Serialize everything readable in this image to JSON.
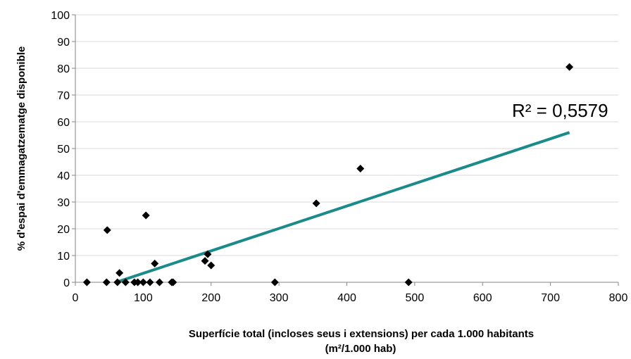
{
  "chart_data": {
    "type": "scatter",
    "xlabel_line1": "Superfície total (incloses seus i extensions) per cada 1.000 habitants",
    "xlabel_line2": "(m²/1.000 hab)",
    "ylabel": "% d'espai d'emmagatzematge disponible",
    "xlim": [
      0,
      800
    ],
    "ylim": [
      0,
      100
    ],
    "x_ticks": [
      0,
      100,
      200,
      300,
      400,
      500,
      600,
      700,
      800
    ],
    "y_ticks": [
      0,
      10,
      20,
      30,
      40,
      50,
      60,
      70,
      80,
      90,
      100
    ],
    "grid": "horizontal",
    "marker": "diamond",
    "marker_color": "#000000",
    "points": [
      {
        "x": 17,
        "y": 0
      },
      {
        "x": 46,
        "y": 0
      },
      {
        "x": 47,
        "y": 19.5
      },
      {
        "x": 62,
        "y": 0
      },
      {
        "x": 65,
        "y": 3.5
      },
      {
        "x": 74,
        "y": 0
      },
      {
        "x": 87,
        "y": 0
      },
      {
        "x": 92,
        "y": 0
      },
      {
        "x": 100,
        "y": 0
      },
      {
        "x": 104,
        "y": 25
      },
      {
        "x": 110,
        "y": 0
      },
      {
        "x": 117,
        "y": 7
      },
      {
        "x": 124,
        "y": 0
      },
      {
        "x": 142,
        "y": 0
      },
      {
        "x": 144,
        "y": 0
      },
      {
        "x": 191,
        "y": 8
      },
      {
        "x": 195,
        "y": 10.5
      },
      {
        "x": 200,
        "y": 6.3
      },
      {
        "x": 294,
        "y": 0
      },
      {
        "x": 355,
        "y": 29.5
      },
      {
        "x": 420,
        "y": 42.5
      },
      {
        "x": 491,
        "y": 0
      },
      {
        "x": 728,
        "y": 80.5
      }
    ],
    "trendline": {
      "color": "#1a8a8a",
      "x1": 60,
      "y1": 0,
      "x2": 728,
      "y2": 56,
      "label": "R² = 0,5579"
    }
  }
}
